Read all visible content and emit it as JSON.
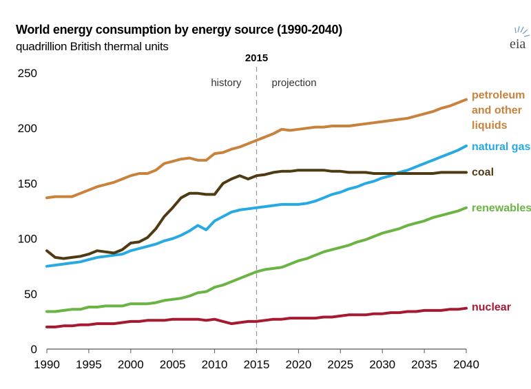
{
  "title": "World energy consumption by energy source (1990-2040)",
  "subtitle": "quadrillion British thermal units",
  "logo_text": "eia",
  "chart_data": {
    "type": "line",
    "title": "World energy consumption by energy source (1990-2040)",
    "subtitle": "quadrillion British thermal units",
    "xlabel": "",
    "ylabel": "",
    "xlim": [
      1990,
      2040
    ],
    "ylim": [
      0,
      250
    ],
    "x_ticks": [
      1990,
      1995,
      2000,
      2005,
      2010,
      2015,
      2020,
      2025,
      2030,
      2035,
      2040
    ],
    "y_ticks": [
      0,
      50,
      100,
      150,
      200,
      250
    ],
    "grid": false,
    "legend": "direct labels at right end of lines",
    "marker": {
      "x": 2015,
      "label": "2015",
      "left_text": "history",
      "right_text": "projection"
    },
    "series": [
      {
        "name": "petroleum and other liquids",
        "label_lines": [
          "petroleum",
          "and other",
          "liquids"
        ],
        "color": "#c8823c",
        "x": [
          1990,
          1991,
          1992,
          1993,
          1994,
          1995,
          1996,
          1997,
          1998,
          1999,
          2000,
          2001,
          2002,
          2003,
          2004,
          2005,
          2006,
          2007,
          2008,
          2009,
          2010,
          2011,
          2012,
          2013,
          2014,
          2015,
          2016,
          2017,
          2018,
          2019,
          2020,
          2021,
          2022,
          2023,
          2024,
          2025,
          2026,
          2027,
          2028,
          2029,
          2030,
          2031,
          2032,
          2033,
          2034,
          2035,
          2036,
          2037,
          2038,
          2039,
          2040
        ],
        "values": [
          137,
          138,
          138,
          138,
          141,
          144,
          147,
          149,
          151,
          154,
          157,
          159,
          159,
          162,
          168,
          170,
          172,
          173,
          171,
          171,
          177,
          178,
          181,
          183,
          186,
          189,
          192,
          195,
          199,
          198,
          199,
          200,
          201,
          201,
          202,
          202,
          202,
          203,
          204,
          205,
          206,
          207,
          208,
          209,
          211,
          213,
          215,
          218,
          220,
          223,
          226
        ]
      },
      {
        "name": "natural gas",
        "label_lines": [
          "natural gas"
        ],
        "color": "#27a9e1",
        "x": [
          1990,
          1991,
          1992,
          1993,
          1994,
          1995,
          1996,
          1997,
          1998,
          1999,
          2000,
          2001,
          2002,
          2003,
          2004,
          2005,
          2006,
          2007,
          2008,
          2009,
          2010,
          2011,
          2012,
          2013,
          2014,
          2015,
          2016,
          2017,
          2018,
          2019,
          2020,
          2021,
          2022,
          2023,
          2024,
          2025,
          2026,
          2027,
          2028,
          2029,
          2030,
          2031,
          2032,
          2033,
          2034,
          2035,
          2036,
          2037,
          2038,
          2039,
          2040
        ],
        "values": [
          75,
          76,
          77,
          78,
          79,
          81,
          83,
          84,
          85,
          86,
          89,
          91,
          93,
          95,
          98,
          100,
          103,
          107,
          112,
          108,
          116,
          120,
          124,
          126,
          127,
          128,
          129,
          130,
          131,
          131,
          131,
          132,
          134,
          137,
          140,
          142,
          145,
          147,
          150,
          152,
          155,
          157,
          160,
          162,
          165,
          168,
          171,
          174,
          177,
          180,
          184
        ]
      },
      {
        "name": "coal",
        "label_lines": [
          "coal"
        ],
        "color": "#4e3b14",
        "x": [
          1990,
          1991,
          1992,
          1993,
          1994,
          1995,
          1996,
          1997,
          1998,
          1999,
          2000,
          2001,
          2002,
          2003,
          2004,
          2005,
          2006,
          2007,
          2008,
          2009,
          2010,
          2011,
          2012,
          2013,
          2014,
          2015,
          2016,
          2017,
          2018,
          2019,
          2020,
          2021,
          2022,
          2023,
          2024,
          2025,
          2026,
          2027,
          2028,
          2029,
          2030,
          2031,
          2032,
          2033,
          2034,
          2035,
          2036,
          2037,
          2038,
          2039,
          2040
        ],
        "values": [
          89,
          83,
          82,
          83,
          84,
          86,
          89,
          88,
          87,
          90,
          96,
          97,
          101,
          109,
          120,
          128,
          137,
          141,
          141,
          140,
          140,
          150,
          154,
          157,
          154,
          157,
          158,
          160,
          161,
          161,
          162,
          162,
          162,
          162,
          161,
          161,
          160,
          160,
          160,
          159,
          159,
          159,
          159,
          159,
          159,
          159,
          159,
          160,
          160,
          160,
          160
        ]
      },
      {
        "name": "renewables",
        "label_lines": [
          "renewables"
        ],
        "color": "#6ab443",
        "x": [
          1990,
          1991,
          1992,
          1993,
          1994,
          1995,
          1996,
          1997,
          1998,
          1999,
          2000,
          2001,
          2002,
          2003,
          2004,
          2005,
          2006,
          2007,
          2008,
          2009,
          2010,
          2011,
          2012,
          2013,
          2014,
          2015,
          2016,
          2017,
          2018,
          2019,
          2020,
          2021,
          2022,
          2023,
          2024,
          2025,
          2026,
          2027,
          2028,
          2029,
          2030,
          2031,
          2032,
          2033,
          2034,
          2035,
          2036,
          2037,
          2038,
          2039,
          2040
        ],
        "values": [
          34,
          34,
          35,
          36,
          36,
          38,
          38,
          39,
          39,
          39,
          41,
          41,
          41,
          42,
          44,
          45,
          46,
          48,
          51,
          52,
          56,
          58,
          61,
          64,
          67,
          70,
          72,
          73,
          74,
          77,
          80,
          82,
          85,
          88,
          90,
          92,
          94,
          97,
          99,
          102,
          105,
          107,
          109,
          112,
          114,
          116,
          119,
          121,
          123,
          125,
          128
        ]
      },
      {
        "name": "nuclear",
        "label_lines": [
          "nuclear"
        ],
        "color": "#a6192e",
        "x": [
          1990,
          1991,
          1992,
          1993,
          1994,
          1995,
          1996,
          1997,
          1998,
          1999,
          2000,
          2001,
          2002,
          2003,
          2004,
          2005,
          2006,
          2007,
          2008,
          2009,
          2010,
          2011,
          2012,
          2013,
          2014,
          2015,
          2016,
          2017,
          2018,
          2019,
          2020,
          2021,
          2022,
          2023,
          2024,
          2025,
          2026,
          2027,
          2028,
          2029,
          2030,
          2031,
          2032,
          2033,
          2034,
          2035,
          2036,
          2037,
          2038,
          2039,
          2040
        ],
        "values": [
          20,
          20,
          21,
          21,
          22,
          22,
          23,
          23,
          23,
          24,
          25,
          25,
          26,
          26,
          26,
          27,
          27,
          27,
          27,
          26,
          27,
          25,
          23,
          24,
          25,
          25,
          26,
          27,
          27,
          28,
          28,
          28,
          28,
          29,
          29,
          30,
          31,
          31,
          31,
          32,
          32,
          33,
          33,
          34,
          34,
          35,
          35,
          35,
          36,
          36,
          37
        ]
      }
    ]
  }
}
